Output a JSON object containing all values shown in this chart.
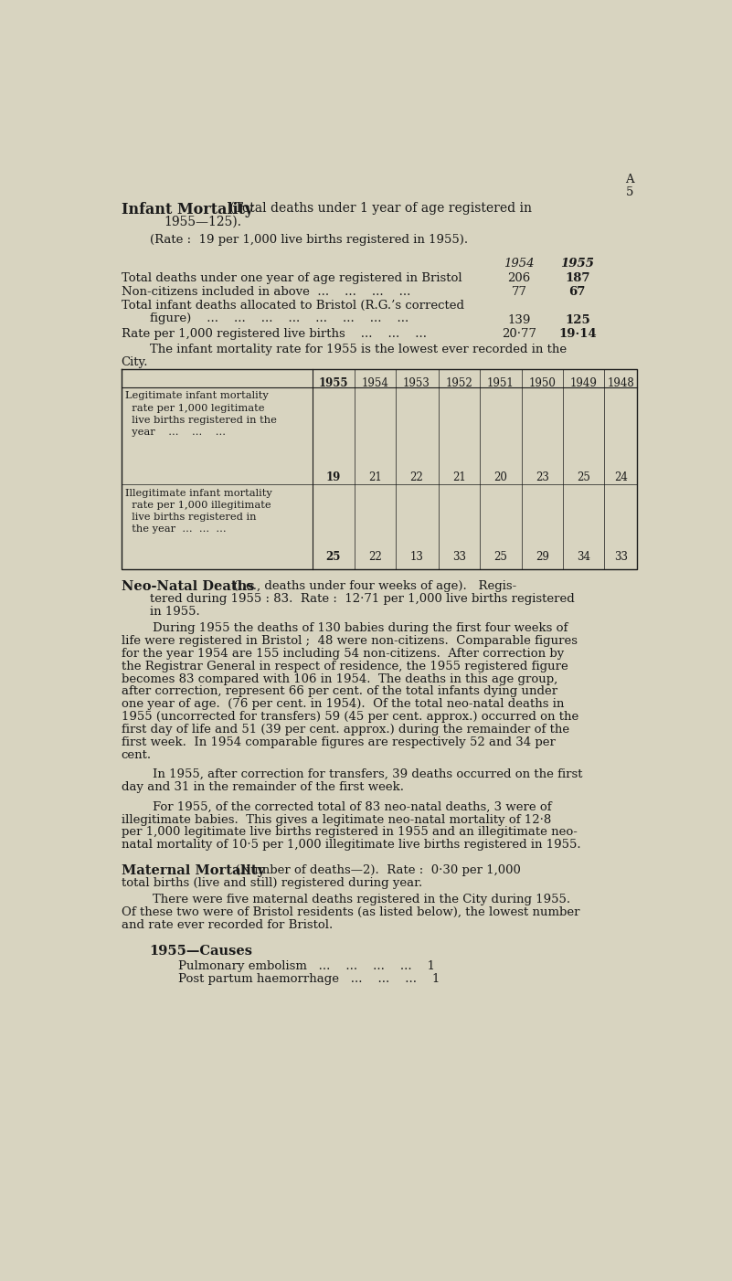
{
  "bg_color": "#d8d4c0",
  "text_color": "#1a1a1a",
  "table_years": [
    "1955",
    "1954",
    "1953",
    "1952",
    "1951",
    "1950",
    "1949",
    "1948"
  ],
  "legit_vals": [
    "19",
    "21",
    "22",
    "21",
    "20",
    "23",
    "25",
    "24"
  ],
  "illegit_vals": [
    "25",
    "22",
    "13",
    "33",
    "25",
    "29",
    "34",
    "33"
  ]
}
